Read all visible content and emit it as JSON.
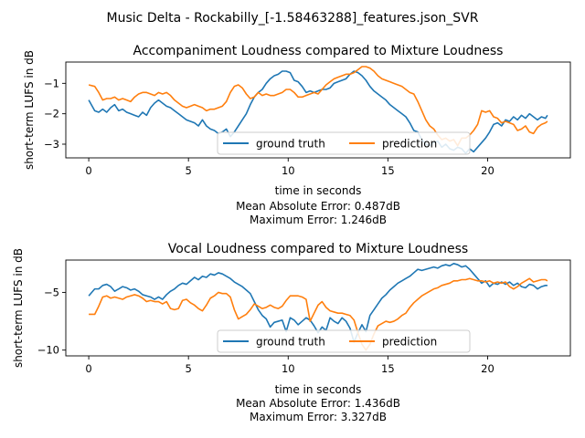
{
  "figure_title": "Music Delta - Rockabilly_[-1.58463288]_features.json_SVR",
  "chart_data": [
    {
      "type": "line",
      "title": "Accompaniment Loudness compared to Mixture Loudness",
      "xlabel": "time in seconds",
      "ylabel": "short-term LUFS in dB",
      "metrics": [
        "Mean Absolute Error: 0.487dB",
        "Maximum Error: 1.246dB"
      ],
      "xlim": [
        -1.15,
        24.15
      ],
      "ylim": [
        -3.45,
        -0.3
      ],
      "xticks": [
        0,
        5,
        10,
        15,
        20
      ],
      "yticks": [
        -1,
        -2,
        -3
      ],
      "legend": "lower-center",
      "legend_columns": 2,
      "series": [
        {
          "name": "ground truth",
          "color": "#1f77b4",
          "x": [
            0,
            0.3,
            0.5,
            0.7,
            0.9,
            1.1,
            1.3,
            1.5,
            1.7,
            1.9,
            2.1,
            2.3,
            2.5,
            2.7,
            2.9,
            3.1,
            3.3,
            3.5,
            3.7,
            3.9,
            4.1,
            4.3,
            4.5,
            4.7,
            4.9,
            5.1,
            5.3,
            5.5,
            5.7,
            5.9,
            6.1,
            6.3,
            6.5,
            6.7,
            6.9,
            7.1,
            7.3,
            7.5,
            7.7,
            7.9,
            8.1,
            8.3,
            8.5,
            8.7,
            8.9,
            9.1,
            9.3,
            9.5,
            9.7,
            9.9,
            10.1,
            10.3,
            10.5,
            10.7,
            10.9,
            11.1,
            11.3,
            11.5,
            11.7,
            11.9,
            12.1,
            12.3,
            12.5,
            12.7,
            12.9,
            13.1,
            13.3,
            13.5,
            13.7,
            13.9,
            14.1,
            14.3,
            14.5,
            14.7,
            14.9,
            15.1,
            15.3,
            15.5,
            15.7,
            15.9,
            16.1,
            16.3,
            16.5,
            16.7,
            16.9,
            17.1,
            17.3,
            17.5,
            17.7,
            17.9,
            18.1,
            18.3,
            18.5,
            18.7,
            18.9,
            19.1,
            19.3,
            19.5,
            19.7,
            19.9,
            20.1,
            20.3,
            20.5,
            20.7,
            20.9,
            21.1,
            21.3,
            21.5,
            21.7,
            21.9,
            22.1,
            22.3,
            22.5,
            22.7,
            22.9,
            23
          ],
          "values": [
            -1.55,
            -1.9,
            -1.95,
            -1.85,
            -1.95,
            -1.8,
            -1.7,
            -1.9,
            -1.85,
            -1.95,
            -2.0,
            -2.05,
            -2.1,
            -1.95,
            -2.05,
            -1.8,
            -1.65,
            -1.55,
            -1.65,
            -1.75,
            -1.8,
            -1.9,
            -2.0,
            -2.1,
            -2.2,
            -2.25,
            -2.3,
            -2.4,
            -2.2,
            -2.4,
            -2.5,
            -2.55,
            -2.65,
            -2.6,
            -2.5,
            -2.75,
            -2.6,
            -2.4,
            -2.2,
            -2.0,
            -1.7,
            -1.45,
            -1.3,
            -1.2,
            -1.0,
            -0.85,
            -0.75,
            -0.7,
            -0.6,
            -0.6,
            -0.65,
            -0.9,
            -0.95,
            -1.1,
            -1.3,
            -1.25,
            -1.3,
            -1.25,
            -1.2,
            -1.2,
            -1.15,
            -1.0,
            -0.95,
            -0.9,
            -0.85,
            -0.7,
            -0.6,
            -0.65,
            -0.75,
            -0.9,
            -1.1,
            -1.25,
            -1.35,
            -1.45,
            -1.55,
            -1.7,
            -1.8,
            -1.9,
            -2.0,
            -2.1,
            -2.3,
            -2.55,
            -2.6,
            -2.85,
            -3.0,
            -3.05,
            -2.95,
            -2.9,
            -3.1,
            -3.0,
            -3.15,
            -3.2,
            -3.1,
            -3.15,
            -3.3,
            -3.15,
            -3.25,
            -3.1,
            -2.95,
            -2.8,
            -2.6,
            -2.35,
            -2.3,
            -2.4,
            -2.2,
            -2.25,
            -2.1,
            -2.2,
            -2.05,
            -2.15,
            -2.0,
            -2.1,
            -2.2,
            -2.1,
            -2.15,
            -2.05
          ]
        },
        {
          "name": "prediction",
          "color": "#ff7f0e",
          "x": [
            0,
            0.3,
            0.5,
            0.7,
            0.9,
            1.1,
            1.3,
            1.5,
            1.7,
            1.9,
            2.1,
            2.3,
            2.5,
            2.7,
            2.9,
            3.1,
            3.3,
            3.5,
            3.7,
            3.9,
            4.1,
            4.3,
            4.5,
            4.7,
            4.9,
            5.1,
            5.3,
            5.5,
            5.7,
            5.9,
            6.1,
            6.3,
            6.5,
            6.7,
            6.9,
            7.1,
            7.3,
            7.5,
            7.7,
            7.9,
            8.1,
            8.3,
            8.5,
            8.7,
            8.9,
            9.1,
            9.3,
            9.5,
            9.7,
            9.9,
            10.1,
            10.3,
            10.5,
            10.7,
            10.9,
            11.1,
            11.3,
            11.5,
            11.7,
            11.9,
            12.1,
            12.3,
            12.5,
            12.7,
            12.9,
            13.1,
            13.3,
            13.5,
            13.7,
            13.9,
            14.1,
            14.3,
            14.5,
            14.7,
            14.9,
            15.1,
            15.3,
            15.5,
            15.7,
            15.9,
            16.1,
            16.3,
            16.5,
            16.7,
            16.9,
            17.1,
            17.3,
            17.5,
            17.7,
            17.9,
            18.1,
            18.3,
            18.5,
            18.7,
            18.9,
            19.1,
            19.3,
            19.5,
            19.7,
            19.9,
            20.1,
            20.3,
            20.5,
            20.7,
            20.9,
            21.1,
            21.3,
            21.5,
            21.7,
            21.9,
            22.1,
            22.3,
            22.5,
            22.7,
            22.9,
            23
          ],
          "values": [
            -1.05,
            -1.1,
            -1.3,
            -1.55,
            -1.5,
            -1.5,
            -1.45,
            -1.55,
            -1.5,
            -1.55,
            -1.6,
            -1.45,
            -1.35,
            -1.3,
            -1.3,
            -1.35,
            -1.4,
            -1.3,
            -1.35,
            -1.3,
            -1.4,
            -1.55,
            -1.65,
            -1.75,
            -1.8,
            -1.75,
            -1.7,
            -1.75,
            -1.8,
            -1.9,
            -1.85,
            -1.85,
            -1.8,
            -1.75,
            -1.6,
            -1.3,
            -1.1,
            -1.05,
            -1.15,
            -1.35,
            -1.5,
            -1.45,
            -1.3,
            -1.4,
            -1.35,
            -1.4,
            -1.4,
            -1.35,
            -1.3,
            -1.2,
            -1.2,
            -1.3,
            -1.45,
            -1.45,
            -1.4,
            -1.35,
            -1.3,
            -1.35,
            -1.2,
            -1.05,
            -0.95,
            -0.85,
            -0.8,
            -0.75,
            -0.7,
            -0.7,
            -0.65,
            -0.55,
            -0.45,
            -0.45,
            -0.5,
            -0.6,
            -0.75,
            -0.85,
            -0.9,
            -0.95,
            -1.0,
            -1.05,
            -1.1,
            -1.2,
            -1.3,
            -1.35,
            -1.6,
            -1.9,
            -2.2,
            -2.4,
            -2.5,
            -2.7,
            -2.85,
            -2.8,
            -2.9,
            -2.85,
            -3.05,
            -2.8,
            -2.8,
            -2.7,
            -2.55,
            -2.35,
            -1.9,
            -1.95,
            -1.9,
            -2.1,
            -2.15,
            -2.3,
            -2.25,
            -2.3,
            -2.35,
            -2.55,
            -2.5,
            -2.4,
            -2.6,
            -2.65,
            -2.45,
            -2.35,
            -2.3,
            -2.25
          ]
        }
      ]
    },
    {
      "type": "line",
      "title": "Vocal Loudness compared to Mixture Loudness",
      "xlabel": "time in seconds",
      "ylabel": "short-term LUFS in dB",
      "metrics": [
        "Mean Absolute Error: 1.436dB",
        "Maximum Error: 3.327dB"
      ],
      "xlim": [
        -1.15,
        24.15
      ],
      "ylim": [
        -10.5,
        -2.2
      ],
      "xticks": [
        0,
        5,
        10,
        15,
        20
      ],
      "yticks": [
        -5,
        -10
      ],
      "legend": "lower-center",
      "legend_columns": 2,
      "series": [
        {
          "name": "ground truth",
          "color": "#1f77b4",
          "x": [
            0,
            0.3,
            0.5,
            0.7,
            0.9,
            1.1,
            1.3,
            1.5,
            1.7,
            1.9,
            2.1,
            2.3,
            2.5,
            2.7,
            2.9,
            3.1,
            3.3,
            3.5,
            3.7,
            3.9,
            4.1,
            4.3,
            4.5,
            4.7,
            4.9,
            5.1,
            5.3,
            5.5,
            5.7,
            5.9,
            6.1,
            6.3,
            6.5,
            6.7,
            6.9,
            7.1,
            7.3,
            7.5,
            7.7,
            7.9,
            8.1,
            8.3,
            8.5,
            8.7,
            8.9,
            9.1,
            9.3,
            9.5,
            9.7,
            9.9,
            10.1,
            10.3,
            10.5,
            10.7,
            10.9,
            11.1,
            11.3,
            11.5,
            11.7,
            11.9,
            12.1,
            12.3,
            12.5,
            12.7,
            12.9,
            13.1,
            13.3,
            13.5,
            13.7,
            13.9,
            14.1,
            14.3,
            14.5,
            14.7,
            14.9,
            15.1,
            15.3,
            15.5,
            15.7,
            15.9,
            16.1,
            16.3,
            16.5,
            16.7,
            16.9,
            17.1,
            17.3,
            17.5,
            17.7,
            17.9,
            18.1,
            18.3,
            18.5,
            18.7,
            18.9,
            19.1,
            19.3,
            19.5,
            19.7,
            19.9,
            20.1,
            20.3,
            20.5,
            20.7,
            20.9,
            21.1,
            21.3,
            21.5,
            21.7,
            21.9,
            22.1,
            22.3,
            22.5,
            22.7,
            22.9,
            23
          ],
          "values": [
            -5.3,
            -4.7,
            -4.7,
            -4.4,
            -4.3,
            -4.5,
            -4.9,
            -4.7,
            -4.5,
            -4.6,
            -4.8,
            -4.7,
            -4.9,
            -5.2,
            -5.3,
            -5.4,
            -5.6,
            -5.4,
            -5.6,
            -5.2,
            -4.9,
            -4.7,
            -4.4,
            -4.2,
            -4.3,
            -4.0,
            -3.7,
            -3.9,
            -3.6,
            -3.7,
            -3.4,
            -3.5,
            -3.3,
            -3.4,
            -3.6,
            -3.8,
            -4.1,
            -4.3,
            -4.5,
            -4.8,
            -5.1,
            -5.8,
            -6.5,
            -7.0,
            -7.3,
            -8.0,
            -7.6,
            -7.5,
            -7.4,
            -8.4,
            -7.2,
            -7.4,
            -7.8,
            -7.5,
            -7.2,
            -7.4,
            -7.9,
            -8.5,
            -8.0,
            -8.3,
            -7.2,
            -7.5,
            -7.7,
            -7.2,
            -7.5,
            -8.1,
            -9.3,
            -8.5,
            -7.8,
            -8.4,
            -7.0,
            -6.5,
            -6.0,
            -5.5,
            -5.2,
            -4.8,
            -4.5,
            -4.2,
            -4.0,
            -3.8,
            -3.6,
            -3.3,
            -3.0,
            -3.1,
            -3.0,
            -2.9,
            -2.8,
            -2.9,
            -2.7,
            -2.6,
            -2.7,
            -2.5,
            -2.6,
            -2.8,
            -2.7,
            -3.0,
            -3.4,
            -3.8,
            -4.2,
            -4.0,
            -4.5,
            -4.2,
            -4.3,
            -4.1,
            -4.3,
            -4.1,
            -4.4,
            -4.2,
            -4.5,
            -4.6,
            -4.3,
            -4.4,
            -4.7,
            -4.5,
            -4.4,
            -4.4
          ]
        },
        {
          "name": "prediction",
          "color": "#ff7f0e",
          "x": [
            0,
            0.3,
            0.5,
            0.7,
            0.9,
            1.1,
            1.3,
            1.5,
            1.7,
            1.9,
            2.1,
            2.3,
            2.5,
            2.7,
            2.9,
            3.1,
            3.3,
            3.5,
            3.7,
            3.9,
            4.1,
            4.3,
            4.5,
            4.7,
            4.9,
            5.1,
            5.3,
            5.5,
            5.7,
            5.9,
            6.1,
            6.3,
            6.5,
            6.7,
            6.9,
            7.1,
            7.3,
            7.5,
            7.7,
            7.9,
            8.1,
            8.3,
            8.5,
            8.7,
            8.9,
            9.1,
            9.3,
            9.5,
            9.7,
            9.9,
            10.1,
            10.3,
            10.5,
            10.7,
            10.9,
            11.1,
            11.3,
            11.5,
            11.7,
            11.9,
            12.1,
            12.3,
            12.5,
            12.7,
            12.9,
            13.1,
            13.3,
            13.5,
            13.7,
            13.9,
            14.1,
            14.3,
            14.5,
            14.7,
            14.9,
            15.1,
            15.3,
            15.5,
            15.7,
            15.9,
            16.1,
            16.3,
            16.5,
            16.7,
            16.9,
            17.1,
            17.3,
            17.5,
            17.7,
            17.9,
            18.1,
            18.3,
            18.5,
            18.7,
            18.9,
            19.1,
            19.3,
            19.5,
            19.7,
            19.9,
            20.1,
            20.3,
            20.5,
            20.7,
            20.9,
            21.1,
            21.3,
            21.5,
            21.7,
            21.9,
            22.1,
            22.3,
            22.5,
            22.7,
            22.9,
            23
          ],
          "values": [
            -6.9,
            -6.9,
            -6.2,
            -5.4,
            -5.3,
            -5.5,
            -5.4,
            -5.5,
            -5.6,
            -5.4,
            -5.3,
            -5.2,
            -5.3,
            -5.5,
            -5.8,
            -5.7,
            -5.8,
            -5.8,
            -6.0,
            -5.8,
            -6.4,
            -6.5,
            -6.4,
            -5.7,
            -5.6,
            -5.9,
            -6.1,
            -6.4,
            -6.6,
            -6.1,
            -5.5,
            -5.3,
            -5.0,
            -5.1,
            -5.1,
            -5.4,
            -6.5,
            -7.3,
            -7.1,
            -6.9,
            -6.5,
            -6.0,
            -6.2,
            -6.4,
            -6.3,
            -6.1,
            -6.3,
            -6.4,
            -6.2,
            -5.7,
            -5.3,
            -5.3,
            -5.3,
            -5.4,
            -5.6,
            -7.5,
            -6.8,
            -6.1,
            -5.8,
            -6.3,
            -6.6,
            -6.7,
            -6.8,
            -6.8,
            -6.9,
            -7.0,
            -7.4,
            -8.5,
            -9.5,
            -10.0,
            -9.5,
            -8.6,
            -7.9,
            -7.7,
            -7.5,
            -7.6,
            -7.5,
            -7.3,
            -7.0,
            -6.8,
            -6.3,
            -5.9,
            -5.6,
            -5.3,
            -5.1,
            -4.9,
            -4.7,
            -4.6,
            -4.4,
            -4.3,
            -4.2,
            -4.0,
            -4.0,
            -3.9,
            -3.9,
            -3.8,
            -3.9,
            -4.0,
            -4.0,
            -4.1,
            -4.0,
            -4.2,
            -4.1,
            -4.2,
            -4.1,
            -4.5,
            -4.7,
            -4.5,
            -4.2,
            -4.0,
            -3.8,
            -4.1,
            -4.0,
            -3.9,
            -3.9,
            -4.0
          ]
        }
      ]
    }
  ]
}
